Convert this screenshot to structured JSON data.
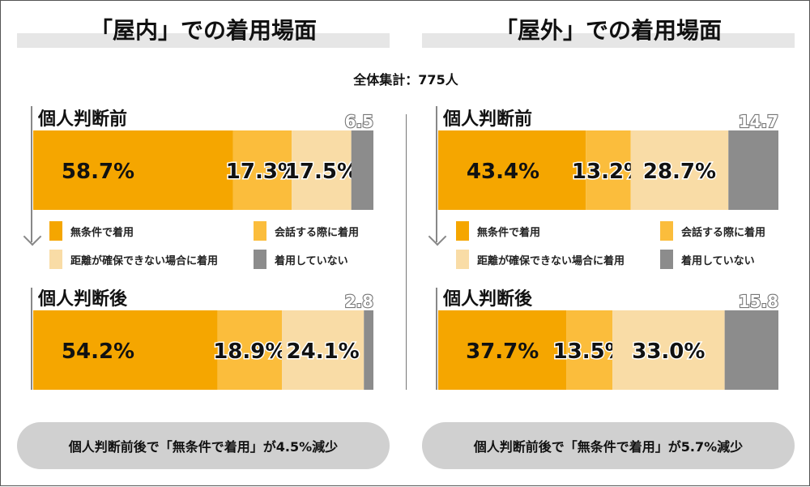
{
  "total_label": "全体集計：775人",
  "legend_labels": [
    "無条件で着用",
    "会話する際に着用",
    "距離が確保できない場合に着用",
    "着用していない"
  ],
  "colors": {
    "unconditional": "#f5a600",
    "conversation": "#fbbd3c",
    "distance": "#f9dca6",
    "none": "#8c8c8c",
    "title_bar": "#e6e6e6",
    "pill": "#d0d0d0"
  },
  "panels": [
    {
      "title": "「屋内」での着用場面",
      "before_label": "個人判断前",
      "after_label": "個人判断後",
      "summary": "個人判断前後で「無条件で着用」が4.5%減少"
    },
    {
      "title": "「屋外」での着用場面",
      "before_label": "個人判断前",
      "after_label": "個人判断後",
      "summary": "個人判断前後で「無条件で着用」が5.7%減少"
    }
  ],
  "chart_data": [
    {
      "type": "bar",
      "title": "「屋内」での着用場面",
      "categories": [
        "個人判断前",
        "個人判断後"
      ],
      "series": [
        {
          "name": "無条件で着用",
          "values": [
            58.7,
            54.2
          ],
          "labels": [
            "58.7%",
            "54.2%"
          ]
        },
        {
          "name": "会話する際に着用",
          "values": [
            17.3,
            18.9
          ],
          "labels": [
            "17.3%",
            "18.9%"
          ]
        },
        {
          "name": "距離が確保できない場合に着用",
          "values": [
            17.5,
            24.1
          ],
          "labels": [
            "17.5%",
            "24.1%"
          ]
        },
        {
          "name": "着用していない",
          "values": [
            6.5,
            2.8
          ],
          "labels": [
            "6.5",
            "2.8"
          ]
        }
      ],
      "stacked": true,
      "orientation": "horizontal",
      "xlim": [
        0,
        100
      ]
    },
    {
      "type": "bar",
      "title": "「屋外」での着用場面",
      "categories": [
        "個人判断前",
        "個人判断後"
      ],
      "series": [
        {
          "name": "無条件で着用",
          "values": [
            43.4,
            37.7
          ],
          "labels": [
            "43.4%",
            "37.7%"
          ]
        },
        {
          "name": "会話する際に着用",
          "values": [
            13.2,
            13.5
          ],
          "labels": [
            "13.2%",
            "13.5%"
          ]
        },
        {
          "name": "距離が確保できない場合に着用",
          "values": [
            28.7,
            33.0
          ],
          "labels": [
            "28.7%",
            "33.0%"
          ]
        },
        {
          "name": "着用していない",
          "values": [
            14.7,
            15.8
          ],
          "labels": [
            "14.7",
            "15.8"
          ]
        }
      ],
      "stacked": true,
      "orientation": "horizontal",
      "xlim": [
        0,
        100
      ]
    }
  ]
}
